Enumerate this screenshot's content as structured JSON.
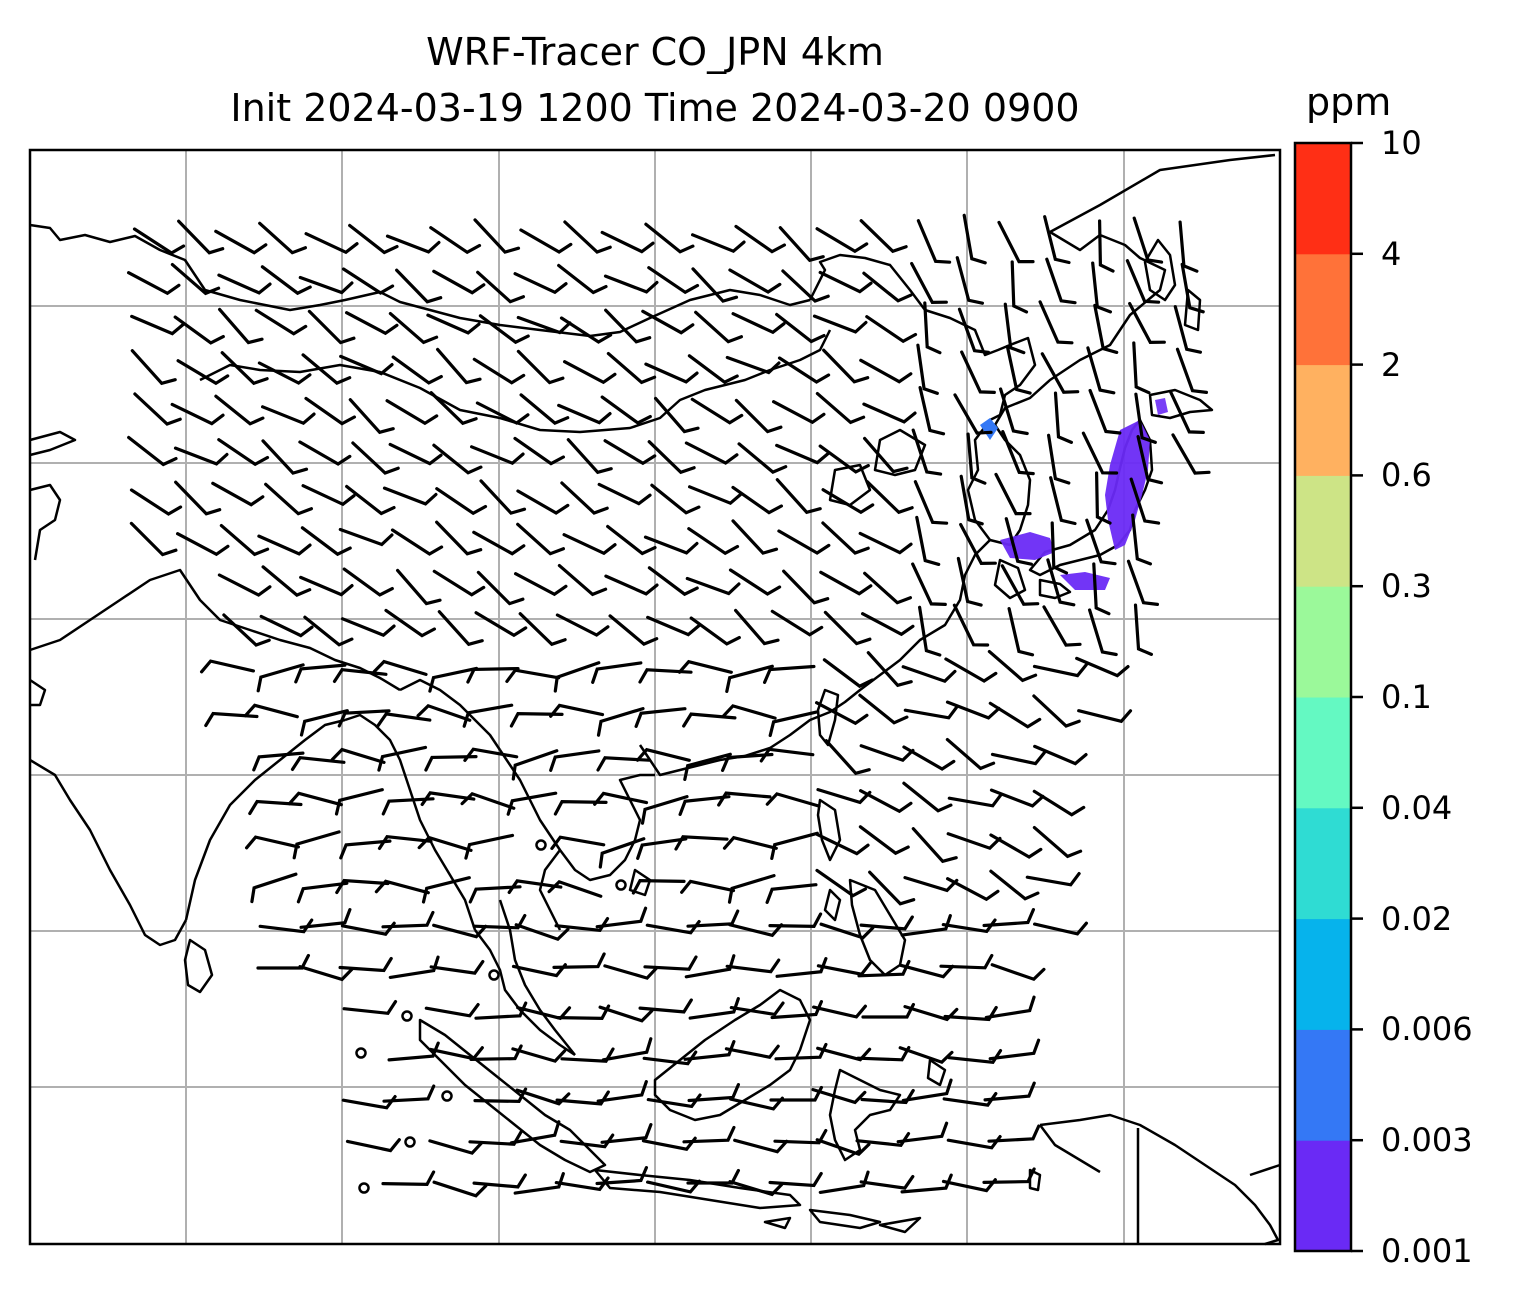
{
  "title": {
    "line1": "WRF-Tracer CO_JPN 4km",
    "line2": "Init 2024-03-19 1200 Time 2024-03-20 0900"
  },
  "colorbar": {
    "unit": "ppm",
    "ticks": [
      "0.001",
      "0.003",
      "0.006",
      "0.02",
      "0.04",
      "0.1",
      "0.3",
      "0.6",
      "2",
      "4",
      "10"
    ],
    "colors": [
      "#6a2af5",
      "#3478f5",
      "#06b3ec",
      "#2fdcd3",
      "#64f9c2",
      "#9bf99a",
      "#cde486",
      "#ffb160",
      "#ff7239",
      "#ff2f15"
    ]
  },
  "map": {
    "gridlines": true,
    "plume_color": "#6a2af5",
    "barb_color": "#000000",
    "coastline_color": "#000000"
  }
}
